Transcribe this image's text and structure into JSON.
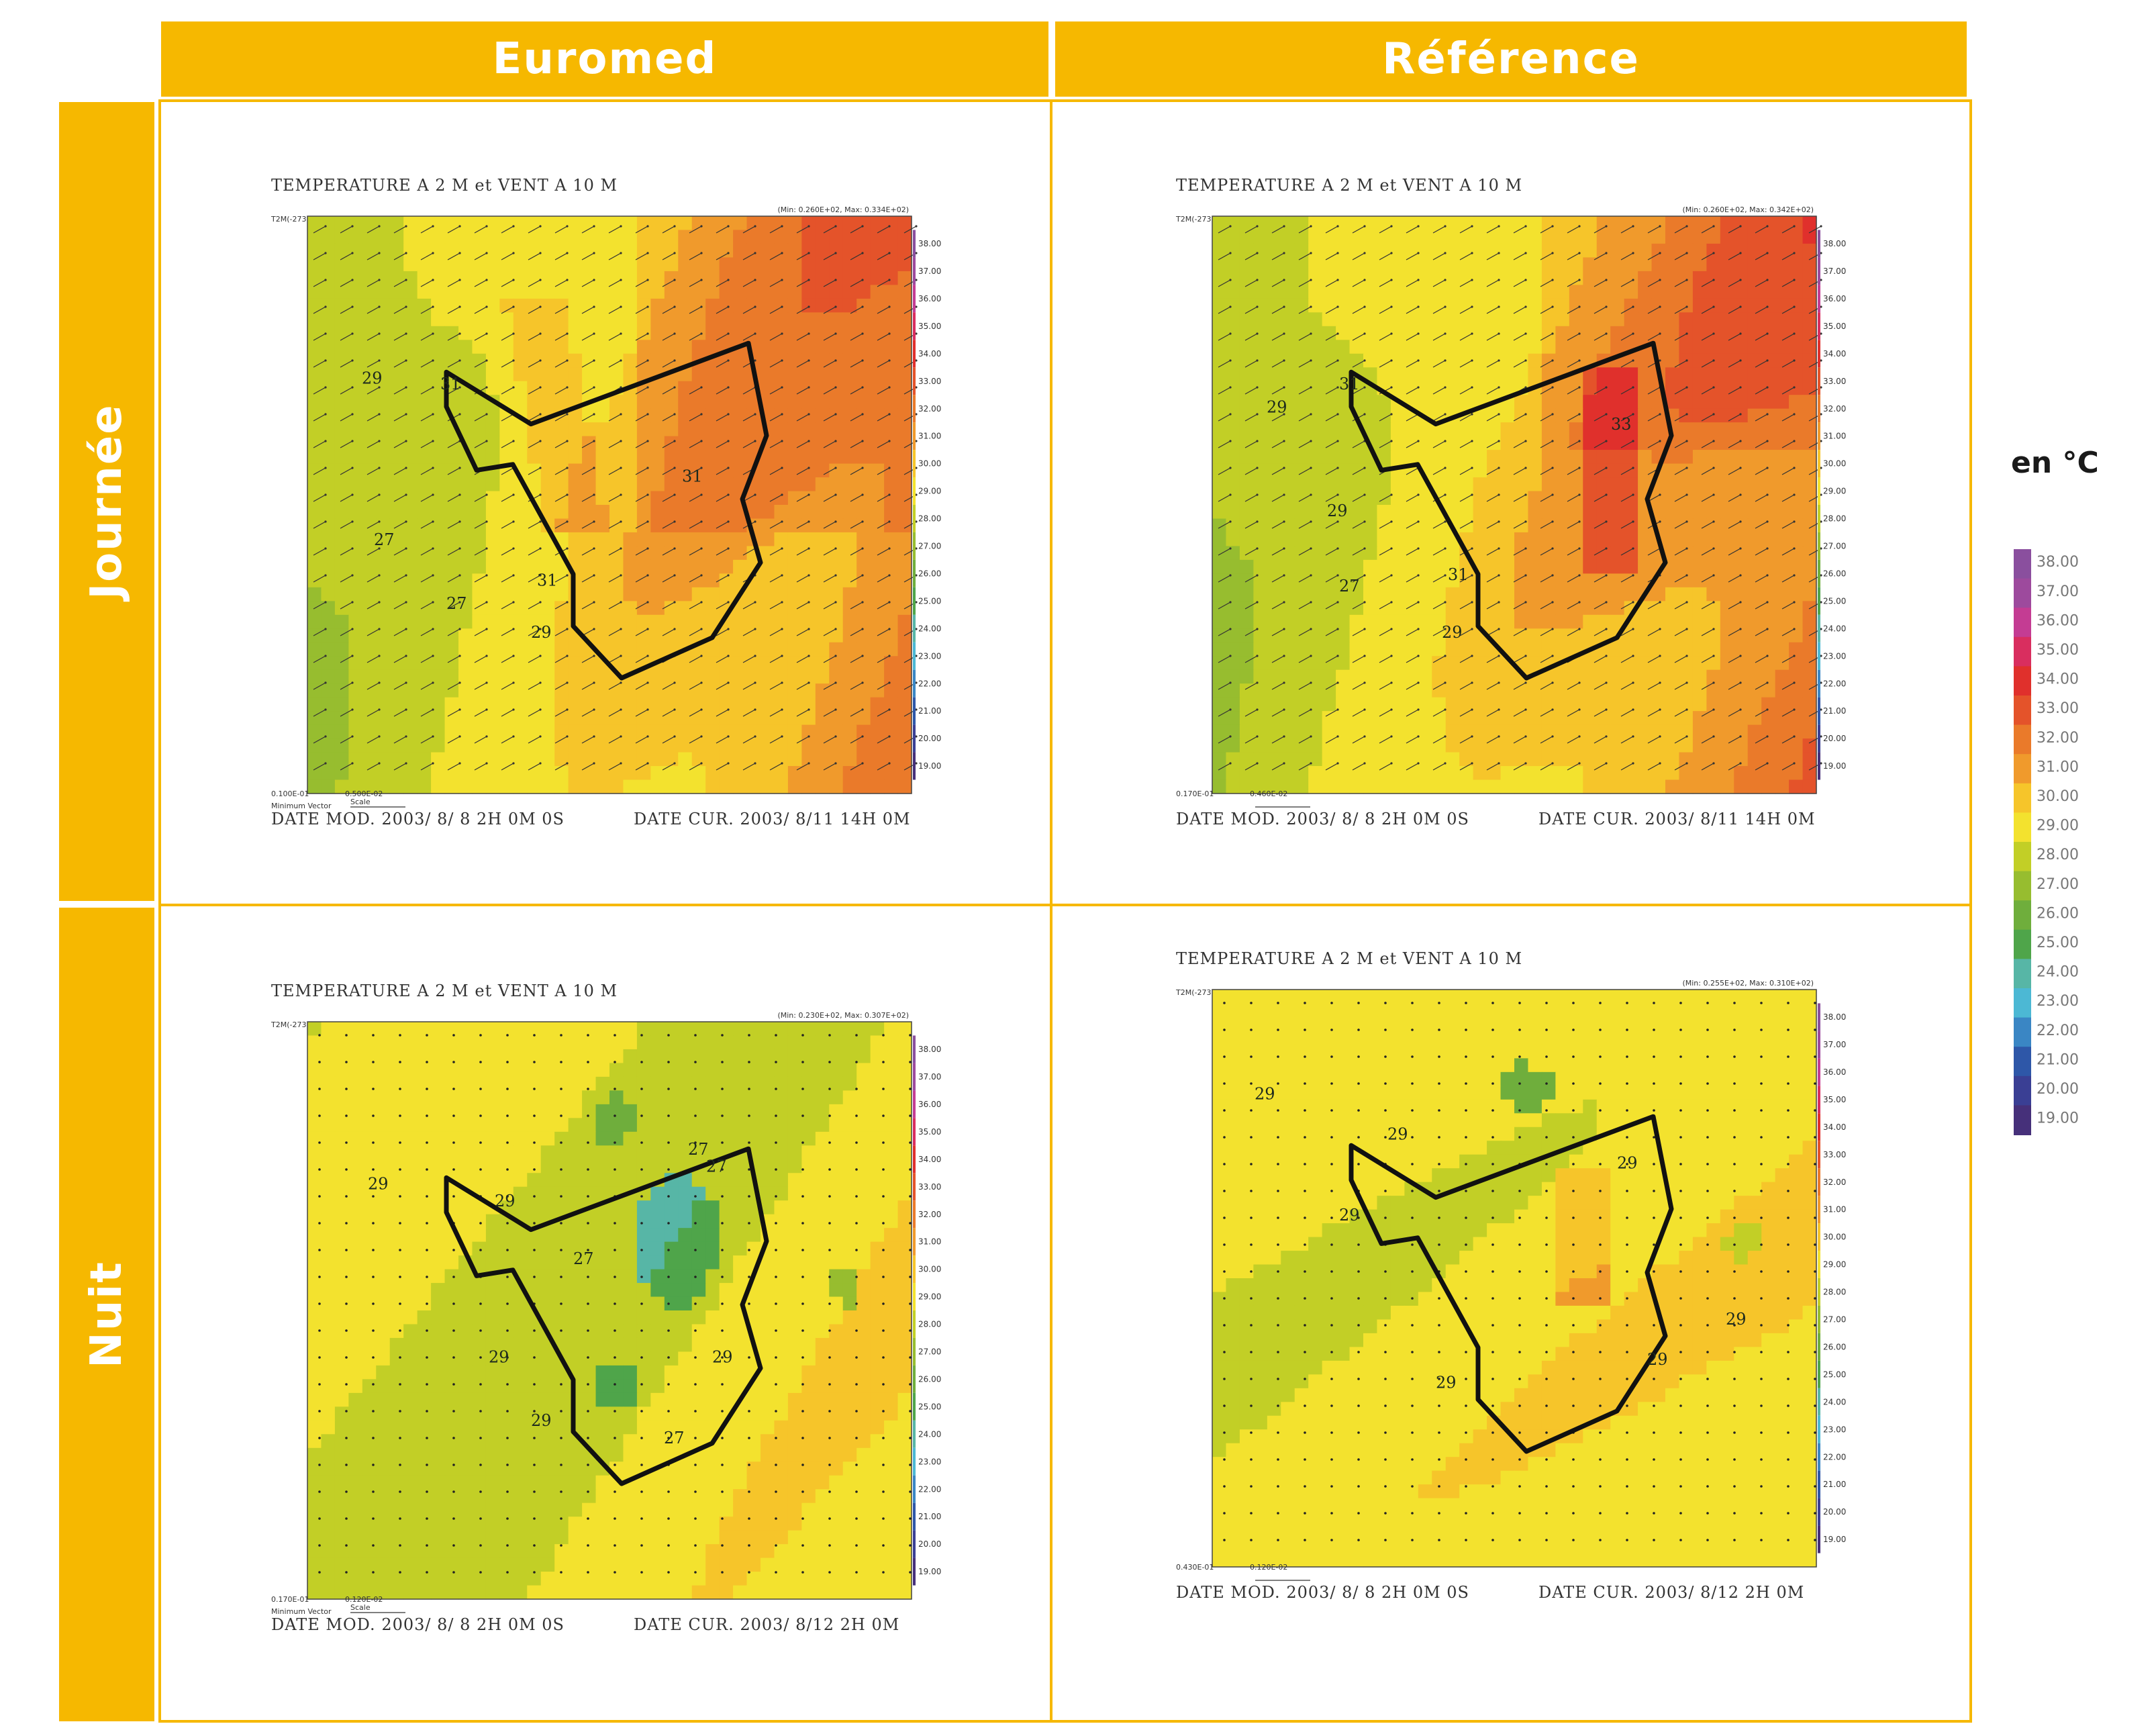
{
  "headers": {
    "columns": [
      "Euromed",
      "Référence"
    ],
    "rows": [
      "Journée",
      "Nuit"
    ]
  },
  "unit_label": "en °C",
  "colors": {
    "banner": "#f6b800",
    "scale": [
      "#46307a",
      "#3a3f94",
      "#2e57a8",
      "#3a86c4",
      "#4cb8d4",
      "#57b6a6",
      "#4fa54a",
      "#6fae3c",
      "#97bd2f",
      "#c2cf26",
      "#f3e22e",
      "#f6c52a",
      "#f09a2c",
      "#ea7a2a",
      "#e4532a",
      "#e0302c",
      "#d92e5f",
      "#c43c93",
      "#9d4a9d",
      "#8a4f9e"
    ]
  },
  "chart_data": [
    {
      "type": "heatmap",
      "panel": "euromed-jour",
      "title": "TEMPERATURE A 2 M et VENT A 10 M",
      "minmax": "(Min: 0.260E+02, Max: 0.334E+02)",
      "var_label": "T2M(-273.15)",
      "footer_left": "DATE MOD. 2003/ 8/ 8    2H 0M 0S",
      "footer_right": "DATE CUR. 2003/ 8/11   14H 0M",
      "min_vector": "0.100E-01",
      "scale_vec": "0.500E-02",
      "min_vector_label": "Minimum Vector",
      "scale_label": "Scale",
      "contour_labels": [
        "29",
        "31",
        "27",
        "27",
        "31",
        "31",
        "29"
      ],
      "min": 26.0,
      "max": 33.4,
      "vector_mode": "wind"
    },
    {
      "type": "heatmap",
      "panel": "reference-jour",
      "title": "TEMPERATURE A 2 M et VENT A 10 M",
      "minmax": "(Min: 0.260E+02, Max: 0.342E+02)",
      "var_label": "T2M(-273.15)",
      "footer_left": "DATE MOD. 2003/ 8/ 8    2H 0M 0S",
      "footer_right": "DATE CUR. 2003/ 8/11   14H 0M",
      "min_vector": "0.170E-01",
      "scale_vec": "0.460E-02",
      "min_vector_label": "",
      "scale_label": "",
      "contour_labels": [
        "29",
        "31",
        "29",
        "27",
        "31",
        "33",
        "29"
      ],
      "min": 26.0,
      "max": 34.2,
      "vector_mode": "wind"
    },
    {
      "type": "heatmap",
      "panel": "euromed-nuit",
      "title": "TEMPERATURE A 2 M et VENT A 10 M",
      "minmax": "(Min: 0.230E+02, Max: 0.307E+02)",
      "var_label": "T2M(-273.15)",
      "footer_left": "DATE MOD. 2003/ 8/ 8    2H 0M 0S",
      "footer_right": "DATE CUR. 2003/ 8/12    2H 0M",
      "min_vector": "0.170E-01",
      "scale_vec": "0.120E-02",
      "min_vector_label": "Minimum Vector",
      "scale_label": "Scale",
      "contour_labels": [
        "29",
        "29",
        "29",
        "27",
        "29",
        "27",
        "27",
        "29",
        "27"
      ],
      "min": 23.0,
      "max": 30.7,
      "vector_mode": "calm"
    },
    {
      "type": "heatmap",
      "panel": "reference-nuit",
      "title": "TEMPERATURE A 2 M et VENT A 10 M",
      "minmax": "(Min: 0.255E+02, Max: 0.310E+02)",
      "var_label": "T2M(-273.15)",
      "footer_left": "DATE MOD. 2003/ 8/ 8    2H 0M 0S",
      "footer_right": "DATE CUR. 2003/ 8/12    2H 0M",
      "min_vector": "0.430E-01",
      "scale_vec": "0.120E-02",
      "min_vector_label": "",
      "scale_label": "",
      "contour_labels": [
        "29",
        "29",
        "29",
        "29",
        "29",
        "29",
        "29"
      ],
      "min": 25.5,
      "max": 31.0,
      "vector_mode": "calm"
    },
    {
      "type": "heatmap",
      "panel": "colour-legend",
      "title": "",
      "scale_ticks": [
        "38.00",
        "37.00",
        "36.00",
        "35.00",
        "34.00",
        "33.00",
        "32.00",
        "31.00",
        "30.00",
        "29.00",
        "28.00",
        "27.00",
        "26.00",
        "25.00",
        "24.00",
        "23.00",
        "22.00",
        "21.00",
        "20.00",
        "19.00"
      ],
      "scale_min": 19.0,
      "scale_max": 38.0
    }
  ]
}
